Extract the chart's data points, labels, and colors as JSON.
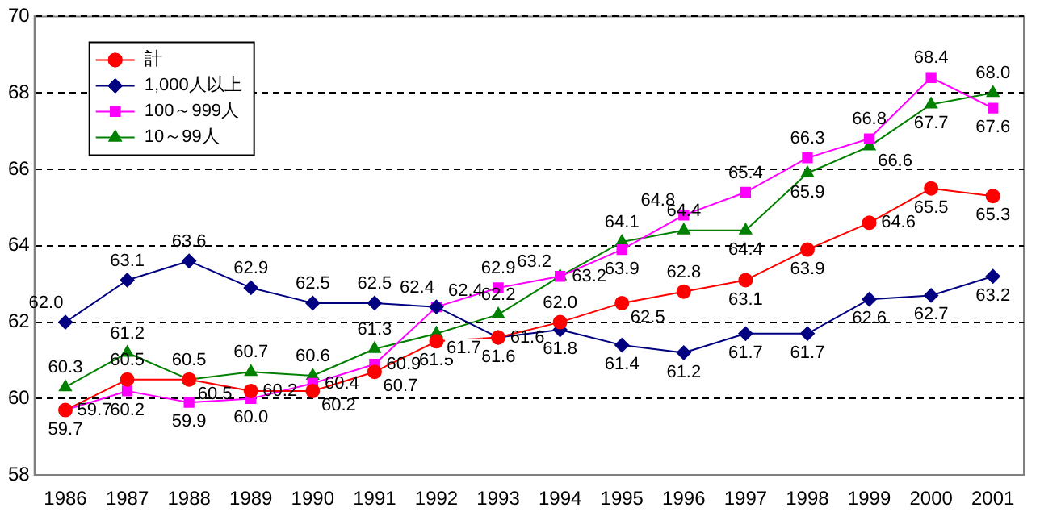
{
  "chart_data": {
    "type": "line",
    "categories": [
      "1986",
      "1987",
      "1988",
      "1989",
      "1990",
      "1991",
      "1992",
      "1993",
      "1994",
      "1995",
      "1996",
      "1997",
      "1998",
      "1999",
      "2000",
      "2001"
    ],
    "series": [
      {
        "name": "計",
        "color": "#ff0000",
        "marker": "circle",
        "values": [
          59.7,
          60.5,
          60.5,
          60.2,
          60.2,
          60.7,
          61.5,
          61.6,
          62.0,
          62.5,
          62.8,
          63.1,
          63.9,
          64.6,
          65.5,
          65.3
        ],
        "value_labels": [
          "59.7",
          "60.5",
          "60.5",
          "60.2",
          "60.2",
          "60.7",
          "61.5",
          "61.6",
          "62.0",
          "62.5",
          "62.8",
          "63.1",
          "63.9",
          "64.6",
          "65.5",
          "65.3"
        ]
      },
      {
        "name": "1,000人以上",
        "color": "#000080",
        "marker": "diamond",
        "values": [
          62.0,
          63.1,
          63.6,
          62.9,
          62.5,
          62.5,
          62.4,
          61.6,
          61.8,
          61.4,
          61.2,
          61.7,
          61.7,
          62.6,
          62.7,
          63.2
        ],
        "value_labels": [
          "62.0",
          "63.1",
          "63.6",
          "62.9",
          "62.5",
          "62.5",
          "62.4",
          "61.6",
          "61.8",
          "61.4",
          "61.2",
          "61.7",
          "61.7",
          "62.6",
          "62.7",
          "63.2"
        ]
      },
      {
        "name": "100～999人",
        "color": "#ff00ff",
        "marker": "square",
        "values": [
          59.7,
          60.2,
          59.9,
          60.0,
          60.4,
          60.9,
          62.4,
          62.9,
          63.2,
          63.9,
          64.8,
          65.4,
          66.3,
          66.8,
          68.4,
          67.6
        ],
        "value_labels": [
          "59.7",
          "60.2",
          "59.9",
          "60.0",
          "60.4",
          "60.9",
          "62.4",
          "62.9",
          "63.2",
          "63.9",
          "64.8",
          "65.4",
          "66.3",
          "66.8",
          "68.4",
          "67.6"
        ]
      },
      {
        "name": "10～99人",
        "color": "#008000",
        "marker": "triangle",
        "values": [
          60.3,
          61.2,
          60.5,
          60.7,
          60.6,
          61.3,
          61.7,
          62.2,
          63.2,
          64.1,
          64.4,
          64.4,
          65.9,
          66.6,
          67.7,
          68.0
        ],
        "value_labels": [
          "60.3",
          "61.2",
          "60.5",
          "60.7",
          "60.6",
          "61.3",
          "61.7",
          "62.2",
          "63.2",
          "64.1",
          "64.4",
          "64.4",
          "65.9",
          "66.6",
          "67.7",
          "68.0"
        ]
      }
    ],
    "ylim": [
      58,
      70
    ],
    "yticks": [
      58,
      60,
      62,
      64,
      66,
      68,
      70
    ],
    "grid": "y",
    "legend": "top left",
    "data_labels": true,
    "line_style": "solid"
  }
}
